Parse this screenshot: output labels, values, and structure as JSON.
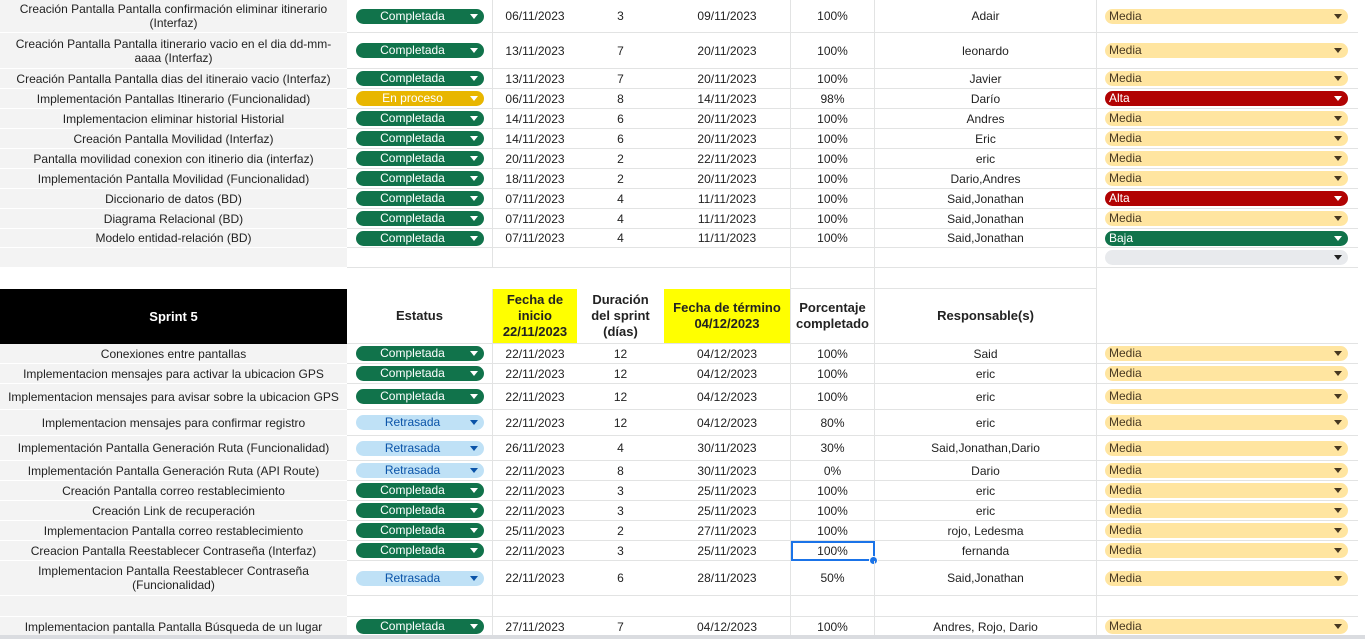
{
  "colors": {
    "completada": "#11734b",
    "en_proceso": "#e8b600",
    "retrasada": "#bfe1f6",
    "media": "#ffe5a0",
    "alta": "#b10202",
    "baja": "#11734b",
    "sprint_header_bg": "#000000",
    "highlight_yellow": "#ffff00",
    "selection_blue": "#1a73e8"
  },
  "icons": {
    "dropdown": "chevron-down-icon"
  },
  "sprint4_rows": [
    {
      "task": "Creación Pantalla Pantalla confirmación eliminar itinerario (Interfaz)",
      "status": "Completada",
      "start": "06/11/2023",
      "duration": "3",
      "end": "09/11/2023",
      "percent": "100%",
      "owner": "Adair",
      "priority": "Media"
    },
    {
      "task": "Creación Pantalla Pantalla itinerario vacio en el dia dd-mm-aaaa (Interfaz)",
      "status": "Completada",
      "start": "13/11/2023",
      "duration": "7",
      "end": "20/11/2023",
      "percent": "100%",
      "owner": "leonardo",
      "priority": "Media"
    },
    {
      "task": "Creación Pantalla Pantalla dias del itineraio vacio (Interfaz)",
      "status": "Completada",
      "start": "13/11/2023",
      "duration": "7",
      "end": "20/11/2023",
      "percent": "100%",
      "owner": "Javier",
      "priority": "Media"
    },
    {
      "task": "Implementación Pantallas Itinerario (Funcionalidad)",
      "status": "En proceso",
      "start": "06/11/2023",
      "duration": "8",
      "end": "14/11/2023",
      "percent": "98%",
      "owner": "Darío",
      "priority": "Alta"
    },
    {
      "task": "Implementacion eliminar historial Historial",
      "status": "Completada",
      "start": "14/11/2023",
      "duration": "6",
      "end": "20/11/2023",
      "percent": "100%",
      "owner": "Andres",
      "priority": "Media"
    },
    {
      "task": "Creación Pantalla Movilidad (Interfaz)",
      "status": "Completada",
      "start": "14/11/2023",
      "duration": "6",
      "end": "20/11/2023",
      "percent": "100%",
      "owner": "Eric",
      "priority": "Media"
    },
    {
      "task": "Pantalla movilidad conexion con itinerio dia (interfaz)",
      "status": "Completada",
      "start": "20/11/2023",
      "duration": "2",
      "end": "22/11/2023",
      "percent": "100%",
      "owner": "eric",
      "priority": "Media"
    },
    {
      "task": "Implementación Pantalla Movilidad (Funcionalidad)",
      "status": "Completada",
      "start": "18/11/2023",
      "duration": "2",
      "end": "20/11/2023",
      "percent": "100%",
      "owner": "Dario,Andres",
      "priority": "Media"
    },
    {
      "task": "Diccionario de datos (BD)",
      "status": "Completada",
      "start": "07/11/2023",
      "duration": "4",
      "end": "11/11/2023",
      "percent": "100%",
      "owner": "Said,Jonathan",
      "priority": "Alta"
    },
    {
      "task": "Diagrama Relacional (BD)",
      "status": "Completada",
      "start": "07/11/2023",
      "duration": "4",
      "end": "11/11/2023",
      "percent": "100%",
      "owner": "Said,Jonathan",
      "priority": "Media"
    },
    {
      "task": "Modelo entidad-relación (BD)",
      "status": "Completada",
      "start": "07/11/2023",
      "duration": "4",
      "end": "11/11/2023",
      "percent": "100%",
      "owner": "Said,Jonathan",
      "priority": "Baja"
    }
  ],
  "sprint5_header": {
    "title": "Sprint 5",
    "status": "Estatus",
    "start_label": "Fecha de inicio 22/11/2023",
    "duration_label": "Duración del sprint (días)",
    "end_label": "Fecha de término 04/12/2023",
    "percent_label": "Porcentaje completado",
    "owner_label": "Responsable(s)"
  },
  "sprint5_rows": [
    {
      "task": "Conexiones entre pantallas",
      "status": "Completada",
      "start": "22/11/2023",
      "duration": "12",
      "end": "04/12/2023",
      "percent": "100%",
      "owner": "Said",
      "priority": "Media"
    },
    {
      "task": "Implementacion mensajes para activar la ubicacion GPS",
      "status": "Completada",
      "start": "22/11/2023",
      "duration": "12",
      "end": "04/12/2023",
      "percent": "100%",
      "owner": "eric",
      "priority": "Media"
    },
    {
      "task": "Implementacion mensajes para avisar sobre la ubicacion GPS",
      "status": "Completada",
      "start": "22/11/2023",
      "duration": "12",
      "end": "04/12/2023",
      "percent": "100%",
      "owner": "eric",
      "priority": "Media"
    },
    {
      "task": "Implementacion mensajes para confirmar registro",
      "status": "Retrasada",
      "start": "22/11/2023",
      "duration": "12",
      "end": "04/12/2023",
      "percent": "80%",
      "owner": "eric",
      "priority": "Media"
    },
    {
      "task": "Implementación Pantalla Generación Ruta (Funcionalidad)",
      "status": "Retrasada",
      "start": "26/11/2023",
      "duration": "4",
      "end": "30/11/2023",
      "percent": "30%",
      "owner": "Said,Jonathan,Dario",
      "priority": "Media"
    },
    {
      "task": "Implementación Pantalla Generación Ruta (API Route)",
      "status": "Retrasada",
      "start": "22/11/2023",
      "duration": "8",
      "end": "30/11/2023",
      "percent": "0%",
      "owner": "Dario",
      "priority": "Media"
    },
    {
      "task": "Creación Pantalla correo restablecimiento",
      "status": "Completada",
      "start": "22/11/2023",
      "duration": "3",
      "end": "25/11/2023",
      "percent": "100%",
      "owner": "eric",
      "priority": "Media"
    },
    {
      "task": "Creación Link de recuperación",
      "status": "Completada",
      "start": "22/11/2023",
      "duration": "3",
      "end": "25/11/2023",
      "percent": "100%",
      "owner": "eric",
      "priority": "Media"
    },
    {
      "task": "Implementacion Pantalla correo restablecimiento",
      "status": "Completada",
      "start": "25/11/2023",
      "duration": "2",
      "end": "27/11/2023",
      "percent": "100%",
      "owner": "rojo, Ledesma",
      "priority": "Media"
    },
    {
      "task": "Creacion Pantalla Reestablecer Contraseña (Interfaz)",
      "status": "Completada",
      "start": "22/11/2023",
      "duration": "3",
      "end": "25/11/2023",
      "percent": "100%",
      "owner": "fernanda",
      "priority": "Media"
    },
    {
      "task": "Implementacion Pantalla Reestablecer Contraseña (Funcionalidad)",
      "status": "Retrasada",
      "start": "22/11/2023",
      "duration": "6",
      "end": "28/11/2023",
      "percent": "50%",
      "owner": "Said,Jonathan",
      "priority": "Media"
    },
    {
      "task": "",
      "status": "",
      "start": "",
      "duration": "",
      "end": "",
      "percent": "",
      "owner": "",
      "priority": ""
    },
    {
      "task": "Implementacion pantalla Pantalla Búsqueda de un lugar",
      "status": "Completada",
      "start": "27/11/2023",
      "duration": "7",
      "end": "04/12/2023",
      "percent": "100%",
      "owner": "Andres, Rojo, Dario",
      "priority": "Media"
    }
  ]
}
